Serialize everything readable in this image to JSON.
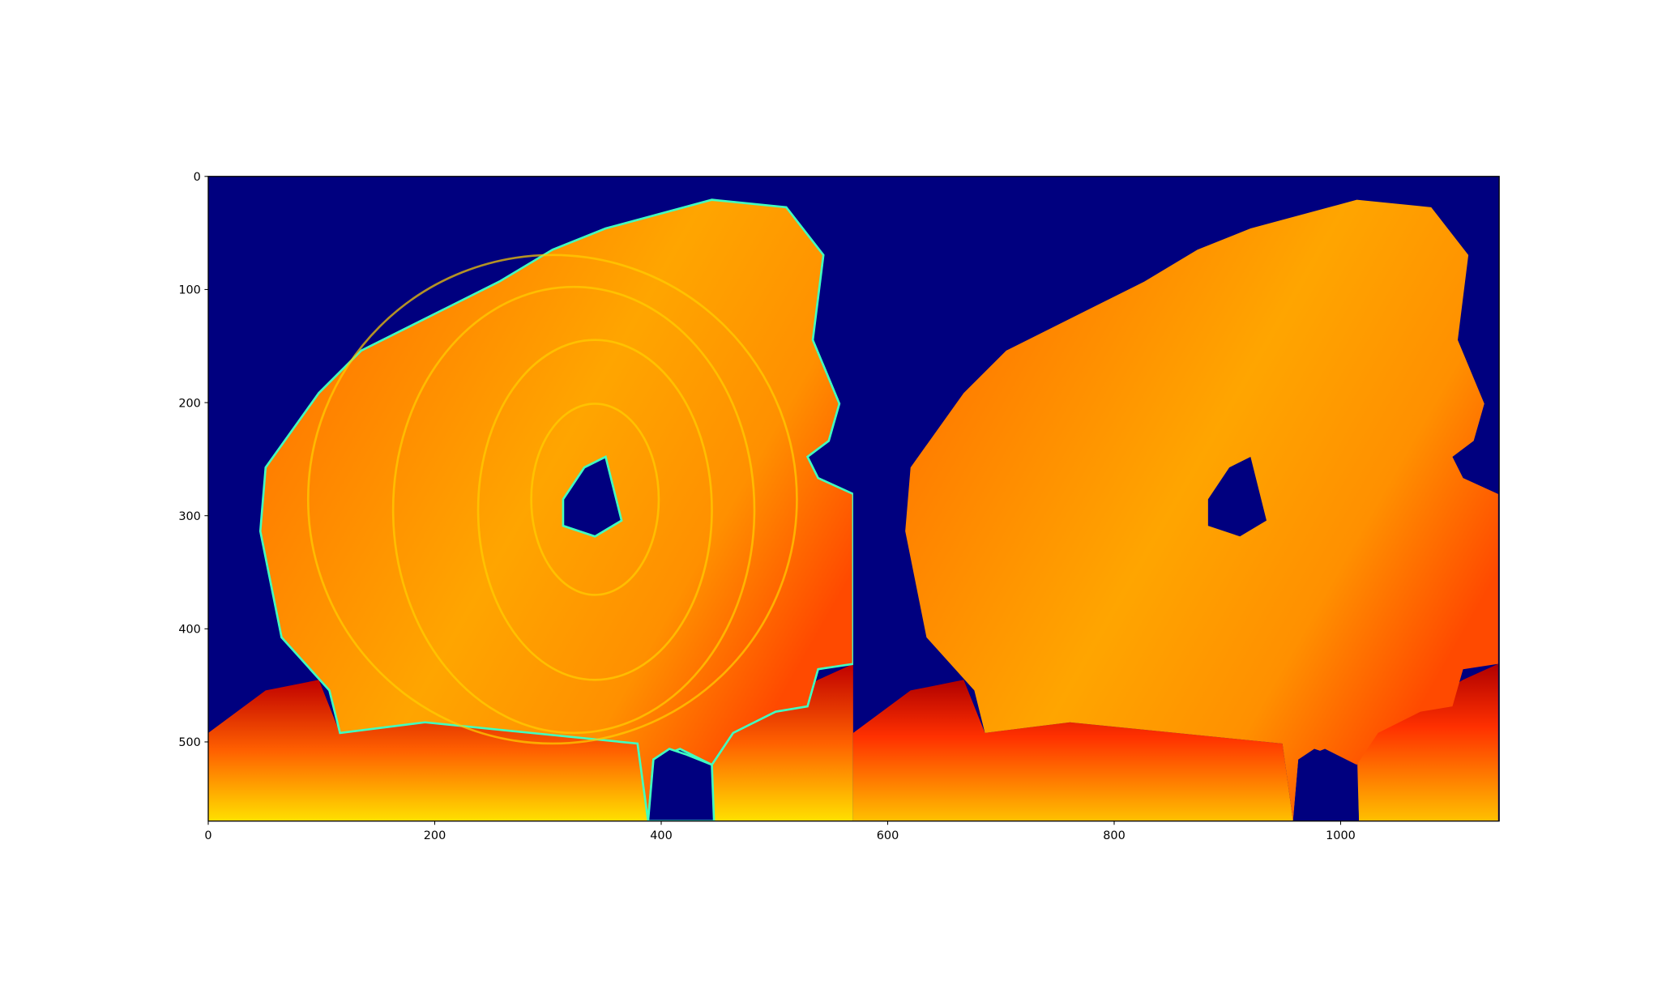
{
  "chart_data": {
    "type": "image",
    "xlim": [
      0,
      1140
    ],
    "ylim": [
      570,
      0
    ],
    "xticks": [
      0,
      200,
      400,
      600,
      800,
      1000
    ],
    "yticks": [
      0,
      100,
      200,
      300,
      400,
      500
    ]
  }
}
